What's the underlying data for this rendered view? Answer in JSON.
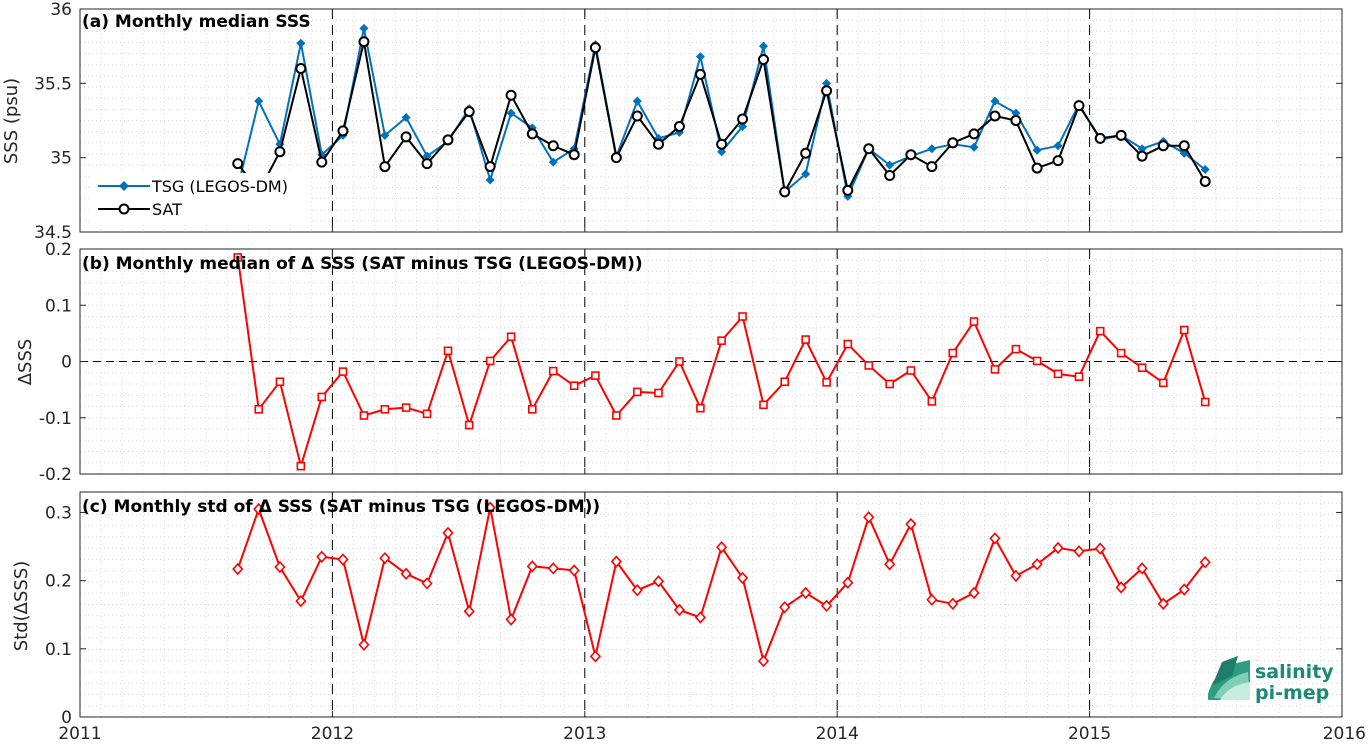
{
  "chart_data": [
    {
      "type": "line",
      "title": "(a) Monthly median SSS",
      "ylabel": "SSS (psu)",
      "ylim": [
        34.5,
        36
      ],
      "yticks": [
        "34.5",
        "35",
        "35.5",
        "36"
      ],
      "xlim": [
        2011,
        2016
      ],
      "xticks": [
        "2011",
        "2012",
        "2013",
        "2014",
        "2015",
        "2016"
      ],
      "grid": true,
      "legend_position": "bottom-left",
      "series": [
        {
          "name": "TSG (LEGOS-DM)",
          "color": "#0072bd",
          "marker": "filled-diamond",
          "points": [
            [
              2011.625,
              34.8
            ],
            [
              2011.708,
              35.38
            ],
            [
              2011.792,
              35.09
            ],
            [
              2011.875,
              35.77
            ],
            [
              2011.958,
              35.02
            ],
            [
              2012.042,
              35.15
            ],
            [
              2012.125,
              35.87
            ],
            [
              2012.208,
              35.15
            ],
            [
              2012.292,
              35.27
            ],
            [
              2012.375,
              35.01
            ],
            [
              2012.458,
              35.11
            ],
            [
              2012.542,
              35.33
            ],
            [
              2012.625,
              34.85
            ],
            [
              2012.708,
              35.3
            ],
            [
              2012.792,
              35.2
            ],
            [
              2012.875,
              34.97
            ],
            [
              2012.958,
              35.06
            ],
            [
              2013.042,
              35.76
            ],
            [
              2013.125,
              35.01
            ],
            [
              2013.208,
              35.38
            ],
            [
              2013.292,
              35.13
            ],
            [
              2013.375,
              35.17
            ],
            [
              2013.458,
              35.68
            ],
            [
              2013.542,
              35.04
            ],
            [
              2013.625,
              35.21
            ],
            [
              2013.708,
              35.75
            ],
            [
              2013.792,
              34.77
            ],
            [
              2013.875,
              34.89
            ],
            [
              2013.958,
              35.5
            ],
            [
              2014.042,
              34.74
            ],
            [
              2014.125,
              35.06
            ],
            [
              2014.208,
              34.95
            ],
            [
              2014.292,
              35.01
            ],
            [
              2014.375,
              35.06
            ],
            [
              2014.458,
              35.09
            ],
            [
              2014.542,
              35.07
            ],
            [
              2014.625,
              35.38
            ],
            [
              2014.708,
              35.3
            ],
            [
              2014.792,
              35.05
            ],
            [
              2014.875,
              35.08
            ],
            [
              2014.958,
              35.36
            ],
            [
              2015.042,
              35.12
            ],
            [
              2015.125,
              35.15
            ],
            [
              2015.208,
              35.06
            ],
            [
              2015.292,
              35.11
            ],
            [
              2015.375,
              35.03
            ],
            [
              2015.458,
              34.92
            ]
          ]
        },
        {
          "name": "SAT",
          "color": "#000000",
          "marker": "open-circle",
          "points": [
            [
              2011.625,
              34.96
            ],
            [
              2011.708,
              34.77
            ],
            [
              2011.792,
              35.04
            ],
            [
              2011.875,
              35.6
            ],
            [
              2011.958,
              34.97
            ],
            [
              2012.042,
              35.18
            ],
            [
              2012.125,
              35.78
            ],
            [
              2012.208,
              34.94
            ],
            [
              2012.292,
              35.14
            ],
            [
              2012.375,
              34.96
            ],
            [
              2012.458,
              35.12
            ],
            [
              2012.542,
              35.31
            ],
            [
              2012.625,
              34.94
            ],
            [
              2012.708,
              35.42
            ],
            [
              2012.792,
              35.16
            ],
            [
              2012.875,
              35.08
            ],
            [
              2012.958,
              35.02
            ],
            [
              2013.042,
              35.74
            ],
            [
              2013.125,
              35.0
            ],
            [
              2013.208,
              35.28
            ],
            [
              2013.292,
              35.09
            ],
            [
              2013.375,
              35.21
            ],
            [
              2013.458,
              35.56
            ],
            [
              2013.542,
              35.09
            ],
            [
              2013.625,
              35.26
            ],
            [
              2013.708,
              35.66
            ],
            [
              2013.792,
              34.77
            ],
            [
              2013.875,
              35.03
            ],
            [
              2013.958,
              35.45
            ],
            [
              2014.042,
              34.78
            ],
            [
              2014.125,
              35.06
            ],
            [
              2014.208,
              34.88
            ],
            [
              2014.292,
              35.02
            ],
            [
              2014.375,
              34.94
            ],
            [
              2014.458,
              35.1
            ],
            [
              2014.542,
              35.16
            ],
            [
              2014.625,
              35.28
            ],
            [
              2014.708,
              35.25
            ],
            [
              2014.792,
              34.93
            ],
            [
              2014.875,
              34.98
            ],
            [
              2014.958,
              35.35
            ],
            [
              2015.042,
              35.13
            ],
            [
              2015.125,
              35.15
            ],
            [
              2015.208,
              35.01
            ],
            [
              2015.292,
              35.08
            ],
            [
              2015.375,
              35.08
            ],
            [
              2015.458,
              34.84
            ]
          ]
        }
      ]
    },
    {
      "type": "line",
      "title": "(b) Monthly median of Δ SSS (SAT minus TSG (LEGOS-DM))",
      "ylabel": "ΔSSS",
      "ylim": [
        -0.2,
        0.2
      ],
      "yticks": [
        "-0.2",
        "-0.1",
        "0",
        "0.1",
        "0.2"
      ],
      "xlim": [
        2011,
        2016
      ],
      "grid": true,
      "reference_line": 0,
      "series": [
        {
          "color": "#ff0000",
          "marker": "open-square",
          "points": [
            [
              2011.625,
              0.185
            ],
            [
              2011.708,
              -0.085
            ],
            [
              2011.792,
              -0.036
            ],
            [
              2011.875,
              -0.186
            ],
            [
              2011.958,
              -0.063
            ],
            [
              2012.042,
              -0.018
            ],
            [
              2012.125,
              -0.096
            ],
            [
              2012.208,
              -0.085
            ],
            [
              2012.292,
              -0.082
            ],
            [
              2012.375,
              -0.093
            ],
            [
              2012.458,
              0.019
            ],
            [
              2012.542,
              -0.113
            ],
            [
              2012.625,
              0.001
            ],
            [
              2012.708,
              0.044
            ],
            [
              2012.792,
              -0.085
            ],
            [
              2012.875,
              -0.017
            ],
            [
              2012.958,
              -0.043
            ],
            [
              2013.042,
              -0.025
            ],
            [
              2013.125,
              -0.096
            ],
            [
              2013.208,
              -0.054
            ],
            [
              2013.292,
              -0.056
            ],
            [
              2013.375,
              0.0
            ],
            [
              2013.458,
              -0.083
            ],
            [
              2013.542,
              0.037
            ],
            [
              2013.625,
              0.08
            ],
            [
              2013.708,
              -0.077
            ],
            [
              2013.792,
              -0.036
            ],
            [
              2013.875,
              0.039
            ],
            [
              2013.958,
              -0.037
            ],
            [
              2014.042,
              0.031
            ],
            [
              2014.125,
              -0.007
            ],
            [
              2014.208,
              -0.04
            ],
            [
              2014.292,
              -0.016
            ],
            [
              2014.375,
              -0.071
            ],
            [
              2014.458,
              0.015
            ],
            [
              2014.542,
              0.071
            ],
            [
              2014.625,
              -0.014
            ],
            [
              2014.708,
              0.022
            ],
            [
              2014.792,
              0.001
            ],
            [
              2014.875,
              -0.022
            ],
            [
              2014.958,
              -0.027
            ],
            [
              2015.042,
              0.054
            ],
            [
              2015.125,
              0.015
            ],
            [
              2015.208,
              -0.011
            ],
            [
              2015.292,
              -0.038
            ],
            [
              2015.375,
              0.056
            ],
            [
              2015.458,
              -0.072
            ]
          ]
        }
      ]
    },
    {
      "type": "line",
      "title": "(c) Monthly std of Δ SSS (SAT minus TSG (LEGOS-DM))",
      "ylabel": "Std(ΔSSS)",
      "ylim": [
        0,
        0.33
      ],
      "yticks": [
        "0",
        "0.1",
        "0.2",
        "0.3"
      ],
      "xlim": [
        2011,
        2016
      ],
      "xticks": [
        "2011",
        "2012",
        "2013",
        "2014",
        "2015",
        "2016"
      ],
      "grid": true,
      "series": [
        {
          "color": "#ff0000",
          "marker": "open-diamond",
          "points": [
            [
              2011.625,
              0.217
            ],
            [
              2011.708,
              0.305
            ],
            [
              2011.792,
              0.22
            ],
            [
              2011.875,
              0.17
            ],
            [
              2011.958,
              0.235
            ],
            [
              2012.042,
              0.231
            ],
            [
              2012.125,
              0.106
            ],
            [
              2012.208,
              0.233
            ],
            [
              2012.292,
              0.21
            ],
            [
              2012.375,
              0.196
            ],
            [
              2012.458,
              0.27
            ],
            [
              2012.542,
              0.155
            ],
            [
              2012.625,
              0.307
            ],
            [
              2012.708,
              0.143
            ],
            [
              2012.792,
              0.221
            ],
            [
              2012.875,
              0.218
            ],
            [
              2012.958,
              0.215
            ],
            [
              2013.042,
              0.089
            ],
            [
              2013.125,
              0.228
            ],
            [
              2013.208,
              0.186
            ],
            [
              2013.292,
              0.199
            ],
            [
              2013.375,
              0.157
            ],
            [
              2013.458,
              0.146
            ],
            [
              2013.542,
              0.249
            ],
            [
              2013.625,
              0.204
            ],
            [
              2013.708,
              0.082
            ],
            [
              2013.792,
              0.161
            ],
            [
              2013.875,
              0.182
            ],
            [
              2013.958,
              0.163
            ],
            [
              2014.042,
              0.197
            ],
            [
              2014.125,
              0.293
            ],
            [
              2014.208,
              0.224
            ],
            [
              2014.292,
              0.283
            ],
            [
              2014.375,
              0.172
            ],
            [
              2014.458,
              0.166
            ],
            [
              2014.542,
              0.182
            ],
            [
              2014.625,
              0.262
            ],
            [
              2014.708,
              0.207
            ],
            [
              2014.792,
              0.224
            ],
            [
              2014.875,
              0.248
            ],
            [
              2014.958,
              0.243
            ],
            [
              2015.042,
              0.247
            ],
            [
              2015.125,
              0.19
            ],
            [
              2015.208,
              0.218
            ],
            [
              2015.292,
              0.166
            ],
            [
              2015.375,
              0.187
            ],
            [
              2015.458,
              0.227
            ]
          ]
        }
      ]
    }
  ],
  "logo": {
    "line1": "salinity",
    "line2": "pi-mep"
  }
}
